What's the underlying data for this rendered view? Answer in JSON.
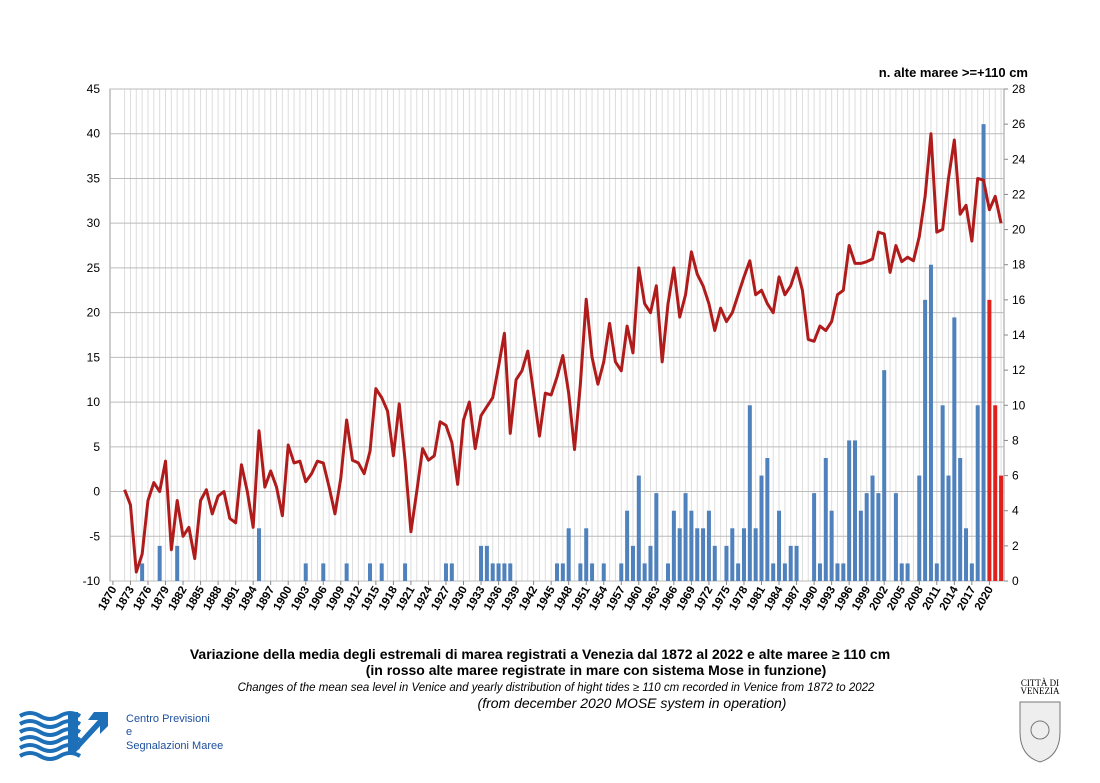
{
  "chart_data": {
    "type": "combo",
    "title": "Variazione della media degli estremali di marea registrati a Venezia dal 1872 al 2022 e alte maree ≥ 110 cm",
    "subtitle": "(in rosso alte maree registrate in mare con sistema Mose in funzione)",
    "caption": "Changes of the mean sea level in Venice and yearly distribution of hight tides ≥ 110 cm recorded in Venice from 1872 to 2022",
    "note": "(from december 2020  MOSE system in operation)",
    "y2_label": "n. alte maree >=+110 cm",
    "x": [
      1872,
      1873,
      1874,
      1875,
      1876,
      1877,
      1878,
      1879,
      1880,
      1881,
      1882,
      1883,
      1884,
      1885,
      1886,
      1887,
      1888,
      1889,
      1890,
      1891,
      1892,
      1893,
      1894,
      1895,
      1896,
      1897,
      1898,
      1899,
      1900,
      1901,
      1902,
      1903,
      1904,
      1905,
      1906,
      1907,
      1908,
      1909,
      1910,
      1911,
      1912,
      1913,
      1914,
      1915,
      1916,
      1917,
      1918,
      1919,
      1920,
      1921,
      1922,
      1923,
      1924,
      1925,
      1926,
      1927,
      1928,
      1929,
      1930,
      1931,
      1932,
      1933,
      1934,
      1935,
      1936,
      1937,
      1938,
      1939,
      1940,
      1941,
      1942,
      1943,
      1944,
      1945,
      1946,
      1947,
      1948,
      1949,
      1950,
      1951,
      1952,
      1953,
      1954,
      1955,
      1956,
      1957,
      1958,
      1959,
      1960,
      1961,
      1962,
      1963,
      1964,
      1965,
      1966,
      1967,
      1968,
      1969,
      1970,
      1971,
      1972,
      1973,
      1974,
      1975,
      1976,
      1977,
      1978,
      1979,
      1980,
      1981,
      1982,
      1983,
      1984,
      1985,
      1986,
      1987,
      1988,
      1989,
      1990,
      1991,
      1992,
      1993,
      1994,
      1995,
      1996,
      1997,
      1998,
      1999,
      2000,
      2001,
      2002,
      2003,
      2004,
      2005,
      2006,
      2007,
      2008,
      2009,
      2010,
      2011,
      2012,
      2013,
      2014,
      2015,
      2016,
      2017,
      2018,
      2019,
      2020,
      2021,
      2022
    ],
    "series": [
      {
        "type": "line",
        "color": "#b01c1c",
        "axis": "y",
        "values": [
          0.2,
          -1.5,
          -9,
          -7,
          -1,
          1,
          0,
          3.4,
          -6.5,
          -1,
          -5,
          -4,
          -7.5,
          -1,
          0.2,
          -2.5,
          -0.5,
          0,
          -3,
          -3.5,
          3,
          0,
          -4,
          6.8,
          0.5,
          2.3,
          0.5,
          -2.7,
          5.2,
          3.2,
          3.4,
          1.1,
          2,
          3.4,
          3.2,
          0.5,
          -2.5,
          1.5,
          8,
          3.5,
          3.2,
          2,
          4.5,
          11.5,
          10.5,
          9,
          4,
          9.8,
          3.5,
          -4.5,
          0,
          4.8,
          3.5,
          4,
          7.8,
          7.4,
          5.5,
          0.8,
          8,
          10,
          4.8,
          8.5,
          9.5,
          10.5,
          14,
          17.7,
          6.5,
          12.5,
          13.5,
          15.7,
          11,
          6.2,
          11,
          10.8,
          12.8,
          15.2,
          11,
          4.7,
          12,
          21.5,
          15,
          12,
          14.5,
          18.8,
          14.5,
          13.5,
          18.5,
          15.5,
          25,
          21,
          20,
          23,
          14.5,
          21,
          25,
          19.5,
          22,
          26.8,
          24.3,
          23,
          21,
          18,
          20.5,
          19,
          20,
          22,
          24,
          25.8,
          22,
          22.5,
          21,
          20,
          24,
          22,
          23,
          25,
          22.5,
          17,
          16.8,
          18.5,
          18,
          19,
          22,
          22.5,
          27.5,
          25.5,
          25.5,
          25.7,
          26,
          29,
          28.8,
          24.5,
          27.5,
          25.7,
          26.2,
          25.8,
          28.5,
          33,
          40,
          29,
          29.3,
          35,
          39.3,
          31,
          32,
          28,
          35,
          34.8,
          31.5,
          33,
          30
        ]
      },
      {
        "type": "bar",
        "color": "#4f81bd",
        "axis": "y2",
        "values": [
          0,
          0,
          0,
          1,
          0,
          0,
          2,
          0,
          0,
          2,
          0,
          0,
          0,
          0,
          0,
          0,
          0,
          0,
          0,
          0,
          0,
          0,
          0,
          3,
          0,
          0,
          0,
          0,
          0,
          0,
          0,
          1,
          0,
          0,
          1,
          0,
          0,
          0,
          1,
          0,
          0,
          0,
          1,
          0,
          1,
          0,
          0,
          0,
          1,
          0,
          0,
          0,
          0,
          0,
          0,
          1,
          1,
          0,
          0,
          0,
          0,
          2,
          2,
          1,
          1,
          1,
          1,
          0,
          0,
          0,
          0,
          0,
          0,
          0,
          1,
          1,
          3,
          0,
          1,
          3,
          1,
          0,
          1,
          0,
          0,
          1,
          4,
          2,
          6,
          1,
          2,
          5,
          0,
          1,
          4,
          3,
          5,
          4,
          3,
          3,
          4,
          2,
          0,
          2,
          3,
          1,
          3,
          10,
          3,
          6,
          7,
          1,
          4,
          1,
          2,
          2,
          0,
          0,
          5,
          1,
          7,
          4,
          1,
          1,
          8,
          8,
          4,
          5,
          6,
          5,
          12,
          0,
          5,
          1,
          1,
          0,
          6,
          16,
          18,
          1,
          10,
          6,
          15,
          7,
          3,
          1,
          10,
          26,
          null,
          null,
          null
        ]
      },
      {
        "type": "bar",
        "color": "#e0201c",
        "axis": "y2",
        "x": [
          2020,
          2021,
          2022
        ],
        "values": [
          16,
          10,
          6
        ]
      }
    ],
    "xlim": [
      1869.5,
      2022.5
    ],
    "xticks": [
      1870,
      1873,
      1876,
      1879,
      1882,
      1885,
      1888,
      1891,
      1894,
      1897,
      1900,
      1903,
      1906,
      1909,
      1912,
      1915,
      1918,
      1921,
      1924,
      1927,
      1930,
      1933,
      1936,
      1939,
      1942,
      1945,
      1948,
      1951,
      1954,
      1957,
      1960,
      1963,
      1966,
      1969,
      1972,
      1975,
      1978,
      1981,
      1984,
      1987,
      1990,
      1993,
      1996,
      1999,
      2002,
      2005,
      2008,
      2011,
      2014,
      2017,
      2020
    ],
    "ylim": [
      -10,
      45
    ],
    "yticks": [
      -10,
      -5,
      0,
      5,
      10,
      15,
      20,
      25,
      30,
      35,
      40,
      45
    ],
    "y2lim": [
      0,
      28
    ],
    "y2ticks": [
      0,
      2,
      4,
      6,
      8,
      10,
      12,
      14,
      16,
      18,
      20,
      22,
      24,
      26,
      28
    ],
    "grid": true
  },
  "logo": {
    "line1": "Centro Previsioni",
    "line2": "e",
    "line3": "Segnalazioni Maree"
  },
  "city": {
    "line1": "CITTÀ DI",
    "line2": "VENEZIA"
  }
}
